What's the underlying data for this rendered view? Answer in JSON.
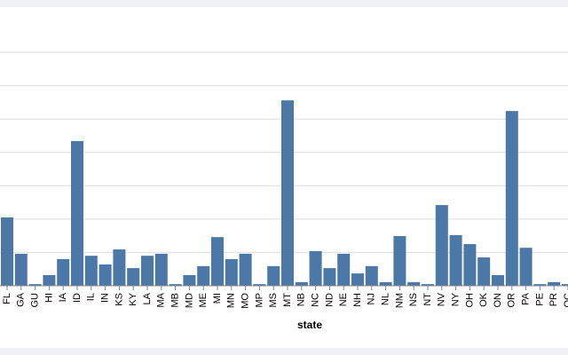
{
  "chart_data": {
    "type": "bar",
    "x_label": "state",
    "color": "#4c78a8",
    "categories": [
      "FL",
      "GA",
      "GU",
      "HI",
      "IA",
      "ID",
      "IL",
      "IN",
      "KS",
      "KY",
      "LA",
      "MA",
      "MB",
      "MD",
      "ME",
      "MI",
      "MN",
      "MO",
      "MP",
      "MS",
      "MT",
      "NB",
      "NC",
      "ND",
      "NE",
      "NH",
      "NJ",
      "NL",
      "NM",
      "NS",
      "NT",
      "NV",
      "NY",
      "OH",
      "OK",
      "ON",
      "OR",
      "PA",
      "PE",
      "PR",
      "QC"
    ],
    "values": [
      20.5,
      9.6,
      0.5,
      3.2,
      8,
      43.4,
      9,
      6.4,
      10.9,
      5.3,
      9,
      9.6,
      0.5,
      3.2,
      5.9,
      14.6,
      8,
      9.6,
      0.5,
      5.9,
      55.6,
      1.1,
      10.4,
      5.3,
      9.6,
      3.7,
      5.9,
      1.1,
      14.9,
      1.1,
      0.5,
      24.2,
      15.2,
      12.5,
      8.5,
      3.2,
      52.4,
      11.4,
      0.5,
      1.1,
      0.5
    ],
    "ylim": [
      0,
      70
    ],
    "yticks": [
      0,
      10,
      20,
      30,
      40,
      50,
      60,
      70
    ],
    "grid": true
  }
}
